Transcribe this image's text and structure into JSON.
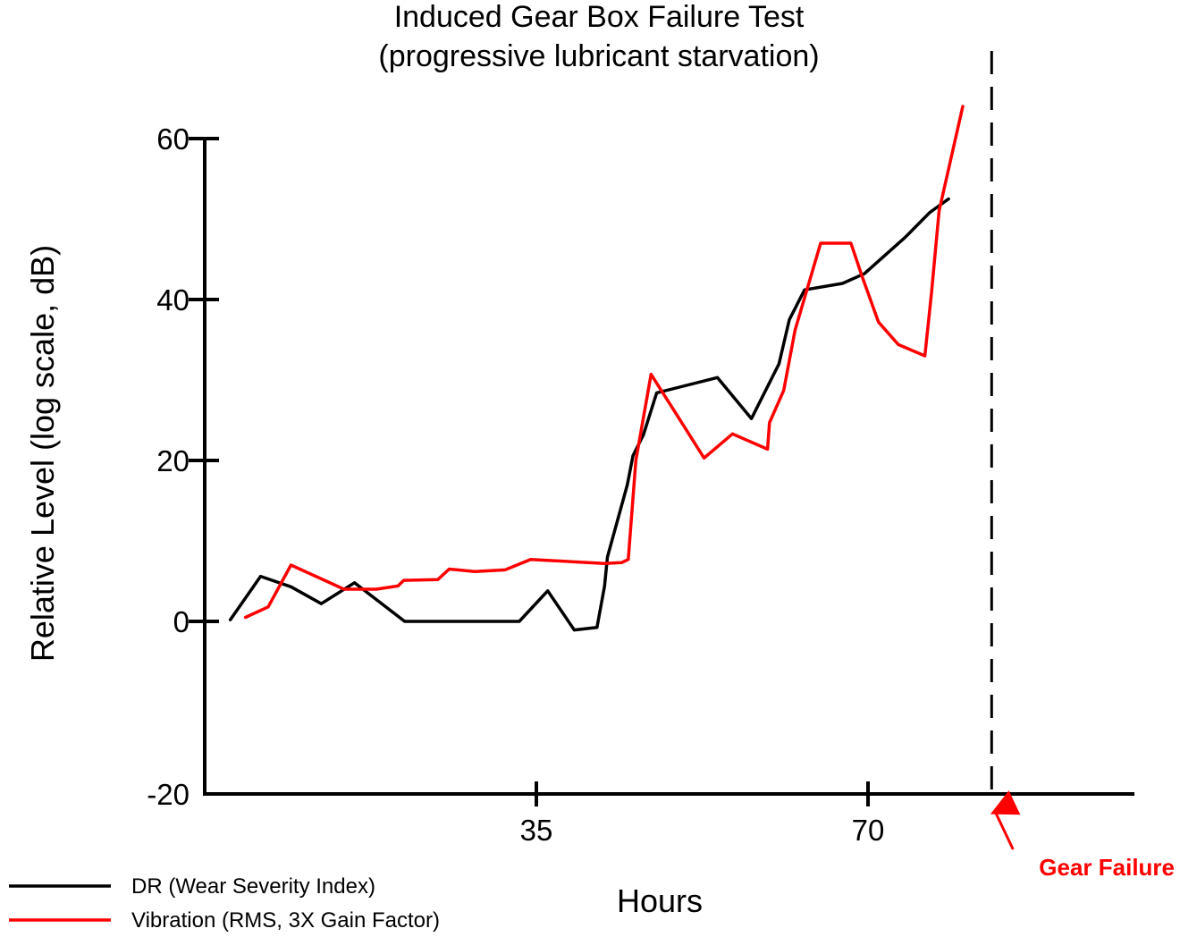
{
  "chart_data": {
    "type": "line",
    "title": "Induced Gear Box Failure Test",
    "subtitle": "(progressive lubricant starvation)",
    "xlabel": "Hours",
    "ylabel": "Relative Level (log scale, dB)",
    "xlim": [
      0,
      103
    ],
    "ylim": [
      -20,
      60
    ],
    "x_ticks": [
      {
        "value": 35,
        "label": "35"
      },
      {
        "value": 70,
        "label": "70"
      }
    ],
    "y_ticks": [
      {
        "value": 60,
        "label": "60"
      },
      {
        "value": 40,
        "label": "40"
      },
      {
        "value": 20,
        "label": "20"
      },
      {
        "value": 0,
        "label": "0"
      },
      {
        "value": -20,
        "label": "-20"
      }
    ],
    "grid": false,
    "legend_position": "bottom-left",
    "series": [
      {
        "name": "DR (Wear Severity Index)",
        "color": "#000000",
        "points": [
          [
            2.7,
            0.2
          ],
          [
            5.9,
            5.6
          ],
          [
            9.1,
            4.3
          ],
          [
            12.3,
            2.2
          ],
          [
            15.8,
            4.8
          ],
          [
            21.1,
            0.0
          ],
          [
            33.2,
            0.0
          ],
          [
            36.2,
            3.8
          ],
          [
            39.0,
            -1.0
          ],
          [
            41.4,
            -0.7
          ],
          [
            42.2,
            4.4
          ],
          [
            42.5,
            8.0
          ],
          [
            44.6,
            17.0
          ],
          [
            45.2,
            20.6
          ],
          [
            46.3,
            23.2
          ],
          [
            47.7,
            28.4
          ],
          [
            54.1,
            30.3
          ],
          [
            57.7,
            25.2
          ],
          [
            60.6,
            32.0
          ],
          [
            61.7,
            37.5
          ],
          [
            63.3,
            41.2
          ],
          [
            67.3,
            42.0
          ],
          [
            69.6,
            43.2
          ],
          [
            73.9,
            47.7
          ],
          [
            76.5,
            50.8
          ],
          [
            78.5,
            52.5
          ]
        ]
      },
      {
        "name": "Vibration (RMS, 3X Gain Factor)",
        "color": "#ff0000",
        "points": [
          [
            4.3,
            0.5
          ],
          [
            6.7,
            1.8
          ],
          [
            9.1,
            7.0
          ],
          [
            14.7,
            4.0
          ],
          [
            18.1,
            4.0
          ],
          [
            20.4,
            4.4
          ],
          [
            21.0,
            5.1
          ],
          [
            24.6,
            5.2
          ],
          [
            25.8,
            6.5
          ],
          [
            28.5,
            6.2
          ],
          [
            31.7,
            6.4
          ],
          [
            34.4,
            7.7
          ],
          [
            42.2,
            7.2
          ],
          [
            44.0,
            7.3
          ],
          [
            44.7,
            7.7
          ],
          [
            45.5,
            20.0
          ],
          [
            47.1,
            30.7
          ],
          [
            49.7,
            25.9
          ],
          [
            52.7,
            20.3
          ],
          [
            55.7,
            23.3
          ],
          [
            59.4,
            21.4
          ],
          [
            59.6,
            24.7
          ],
          [
            61.1,
            28.7
          ],
          [
            62.3,
            36.2
          ],
          [
            65.0,
            47.0
          ],
          [
            68.2,
            47.0
          ],
          [
            69.4,
            42.8
          ],
          [
            71.1,
            37.2
          ],
          [
            73.2,
            34.4
          ],
          [
            76.0,
            33.0
          ],
          [
            76.7,
            40.8
          ],
          [
            77.5,
            51.0
          ],
          [
            80.0,
            64.0
          ]
        ]
      }
    ],
    "annotations": [
      {
        "type": "vline",
        "x": 83,
        "style": "dashed",
        "color": "#000000"
      },
      {
        "type": "arrow-label",
        "x": 83,
        "text": "Gear Failure",
        "color": "#ff0000"
      }
    ]
  }
}
